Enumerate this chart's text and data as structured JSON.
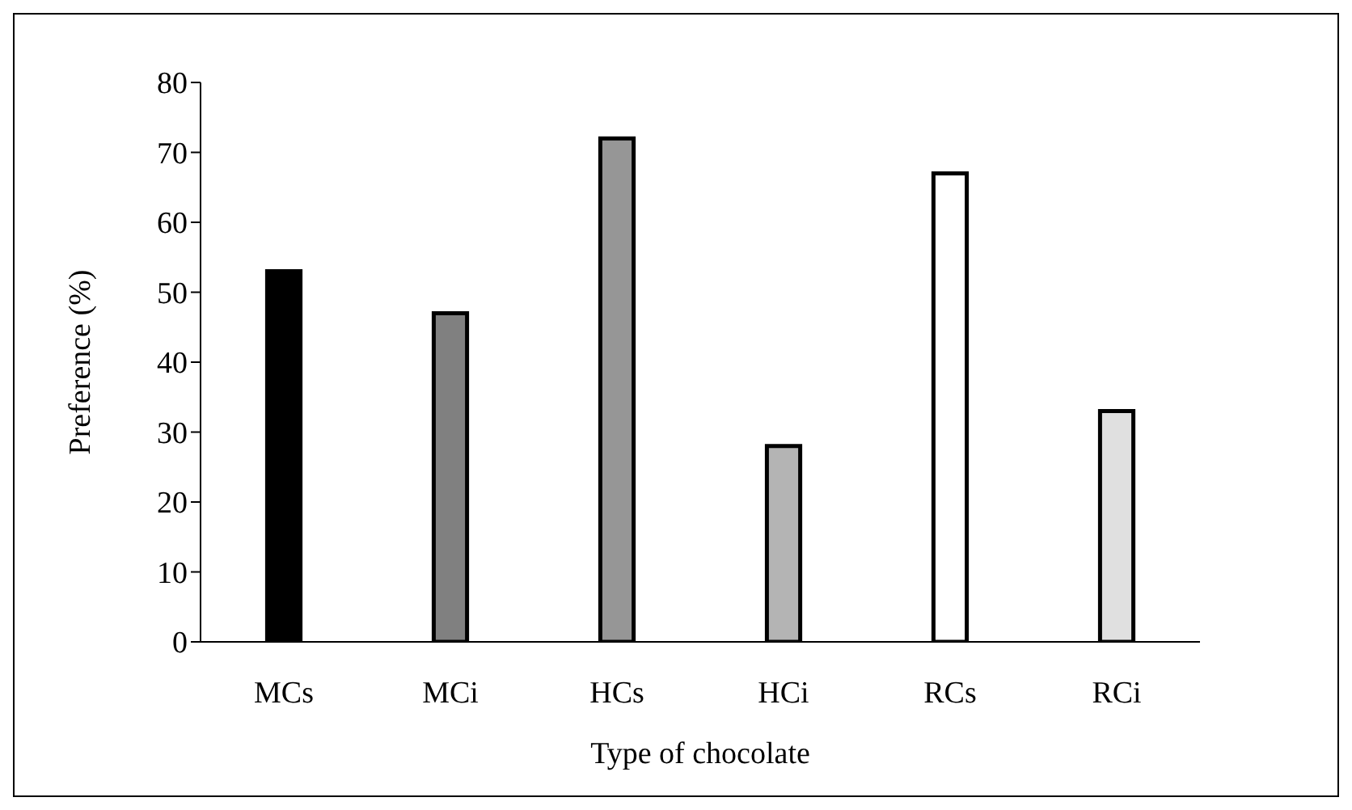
{
  "chart_data": {
    "type": "bar",
    "xlabel": "Type of chocolate",
    "ylabel": "Preference (%)",
    "categories": [
      "MCs",
      "MCi",
      "HCs",
      "HCi",
      "RCs",
      "RCi"
    ],
    "values": [
      53,
      47,
      72,
      28,
      67,
      33
    ],
    "colors": [
      "#000000",
      "#808080",
      "#969696",
      "#b4b4b4",
      "#ffffff",
      "#e0e0e0"
    ],
    "ylim": [
      0,
      80
    ],
    "yticks": [
      0,
      10,
      20,
      30,
      40,
      50,
      60,
      70,
      80
    ],
    "grid": false,
    "legend": false
  }
}
